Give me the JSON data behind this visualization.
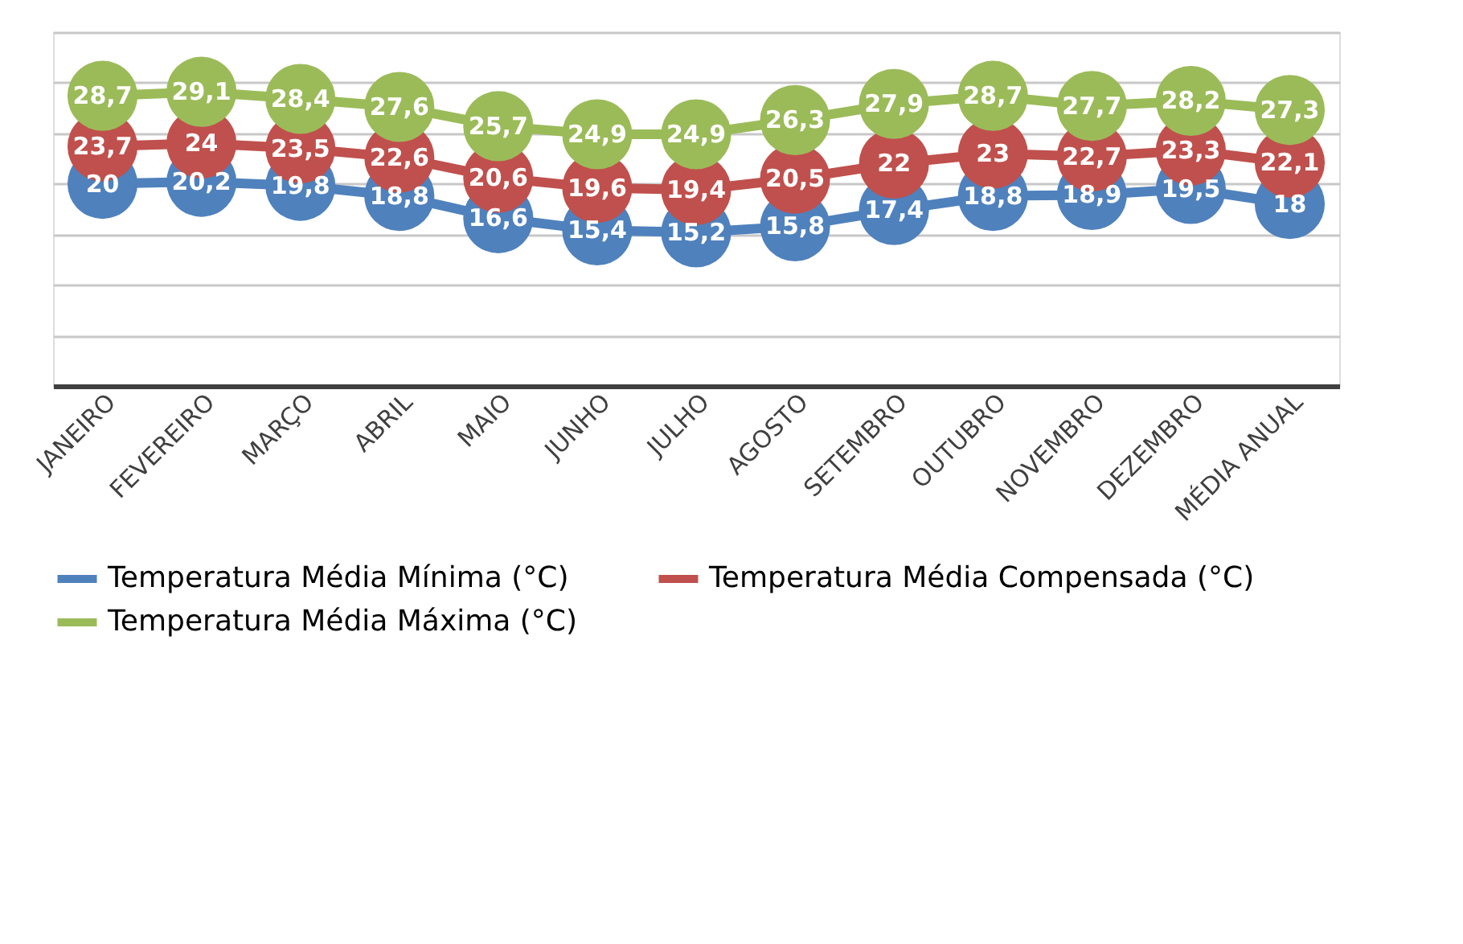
{
  "chart_data": {
    "type": "line",
    "categories": [
      "JANEIRO",
      "FEVEREIRO",
      "MARÇO",
      "ABRIL",
      "MAIO",
      "JUNHO",
      "JULHO",
      "AGOSTO",
      "SETEMBRO",
      "OUTUBRO",
      "NOVEMBRO",
      "DEZEMBRO",
      "MÉDIA ANUAL"
    ],
    "series": [
      {
        "name": "Temperatura Média Mínima (°C)",
        "color": "#4f81bd",
        "values": [
          20,
          20.2,
          19.8,
          18.8,
          16.6,
          15.4,
          15.2,
          15.8,
          17.4,
          18.8,
          18.9,
          19.5,
          18
        ],
        "value_labels": [
          "20",
          "20,2",
          "19,8",
          "18,8",
          "16,6",
          "15,4",
          "15,2",
          "15,8",
          "17,4",
          "18,8",
          "18,9",
          "19,5",
          "18"
        ]
      },
      {
        "name": "Temperatura Média Compensada (°C)",
        "color": "#c0504d",
        "values": [
          23.7,
          24,
          23.5,
          22.6,
          20.6,
          19.6,
          19.4,
          20.5,
          22,
          23,
          22.7,
          23.3,
          22.1
        ],
        "value_labels": [
          "23,7",
          "24",
          "23,5",
          "22,6",
          "20,6",
          "19,6",
          "19,4",
          "20,5",
          "22",
          "23",
          "22,7",
          "23,3",
          "22,1"
        ]
      },
      {
        "name": "Temperatura Média Máxima (°C)",
        "color": "#9bbb59",
        "values": [
          28.7,
          29.1,
          28.4,
          27.6,
          25.7,
          24.9,
          24.9,
          26.3,
          27.9,
          28.7,
          27.7,
          28.2,
          27.3
        ],
        "value_labels": [
          "28,7",
          "29,1",
          "28,4",
          "27,6",
          "25,7",
          "24,9",
          "24,9",
          "26,3",
          "27,9",
          "28,7",
          "27,7",
          "28,2",
          "27,3"
        ]
      }
    ],
    "ylim": [
      0,
      35
    ],
    "tick_labels": "x",
    "grid": "y",
    "legend": "bottom",
    "marker": "circle",
    "line_style": "solid"
  }
}
